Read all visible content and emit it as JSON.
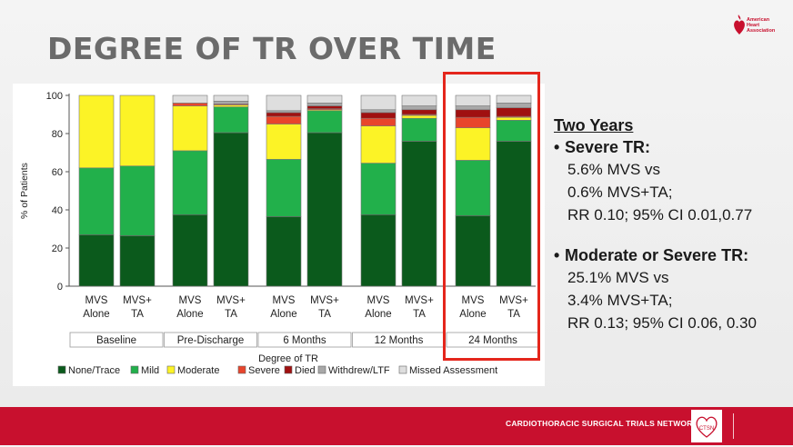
{
  "slide": {
    "title": "DEGREE OF TR OVER TIME",
    "logo_text": [
      "American",
      "Heart",
      "Association"
    ],
    "footer": "CARDIOTHORACIC SURGICAL TRIALS NETWORK",
    "footer_logo_text": "CTSN"
  },
  "notes": {
    "heading": "Two Years",
    "bullet1": "Severe TR:",
    "bullet1_lines": [
      "5.6% MVS  vs",
      "0.6% MVS+TA;",
      "RR 0.10; 95% CI 0.01,0.77"
    ],
    "bullet2": "Moderate or Severe TR:",
    "bullet2_lines": [
      "25.1% MVS vs",
      "3.4% MVS+TA;",
      "RR 0.13; 95% CI 0.06, 0.30"
    ]
  },
  "colors": {
    "None/Trace": "#0b5a1c",
    "Mild": "#22b04b",
    "Moderate": "#fcf326",
    "Severe": "#e8452c",
    "Died": "#a01010",
    "Withdrew/LTF": "#a8a8a8",
    "Missed Assessment": "#dedede",
    "highlight": "#e4261c",
    "footer": "#c8102e"
  },
  "chart_data": {
    "type": "bar",
    "stacked": true,
    "ylabel": "% of Patients",
    "ylim": [
      0,
      100
    ],
    "yticks": [
      0,
      20,
      40,
      60,
      80,
      100
    ],
    "group_labels": [
      "Baseline",
      "Pre-Discharge",
      "6 Months",
      "12 Months",
      "24 Months"
    ],
    "bar_labels": [
      [
        "MVS",
        "Alone"
      ],
      [
        "MVS+",
        "TA"
      ]
    ],
    "legend_title": "Degree of TR",
    "series_names": [
      "None/Trace",
      "Mild",
      "Moderate",
      "Severe",
      "Died",
      "Withdrew/LTF",
      "Missed Assessment"
    ],
    "bars": [
      {
        "group": "Baseline",
        "label": "MVS Alone",
        "values": [
          27,
          35,
          38,
          0,
          0,
          0,
          0
        ]
      },
      {
        "group": "Baseline",
        "label": "MVS+ TA",
        "values": [
          26.5,
          36.5,
          37,
          0,
          0,
          0,
          0
        ]
      },
      {
        "group": "Pre-Discharge",
        "label": "MVS Alone",
        "values": [
          37.5,
          33.5,
          23.5,
          1.5,
          0,
          0,
          4
        ]
      },
      {
        "group": "Pre-Discharge",
        "label": "MVS+ TA",
        "values": [
          80.5,
          13.5,
          1,
          0.5,
          0,
          1.5,
          3
        ]
      },
      {
        "group": "6 Months",
        "label": "MVS Alone",
        "values": [
          36.5,
          30,
          18.5,
          4,
          2,
          1,
          8
        ]
      },
      {
        "group": "6 Months",
        "label": "MVS+ TA",
        "values": [
          80.5,
          11.5,
          0.5,
          0.5,
          1.5,
          1.5,
          4
        ]
      },
      {
        "group": "12 Months",
        "label": "MVS Alone",
        "values": [
          37.5,
          27,
          19.5,
          4,
          3,
          1.5,
          7.5
        ]
      },
      {
        "group": "12 Months",
        "label": "MVS+ TA",
        "values": [
          76,
          12,
          1.5,
          0.5,
          2.5,
          2,
          5.5
        ]
      },
      {
        "group": "24 Months",
        "label": "MVS Alone",
        "values": [
          37,
          29,
          17,
          5.5,
          4,
          2,
          5.5
        ]
      },
      {
        "group": "24 Months",
        "label": "MVS+ TA",
        "values": [
          76,
          11,
          1.5,
          0.5,
          4.5,
          2.5,
          4
        ]
      }
    ]
  }
}
